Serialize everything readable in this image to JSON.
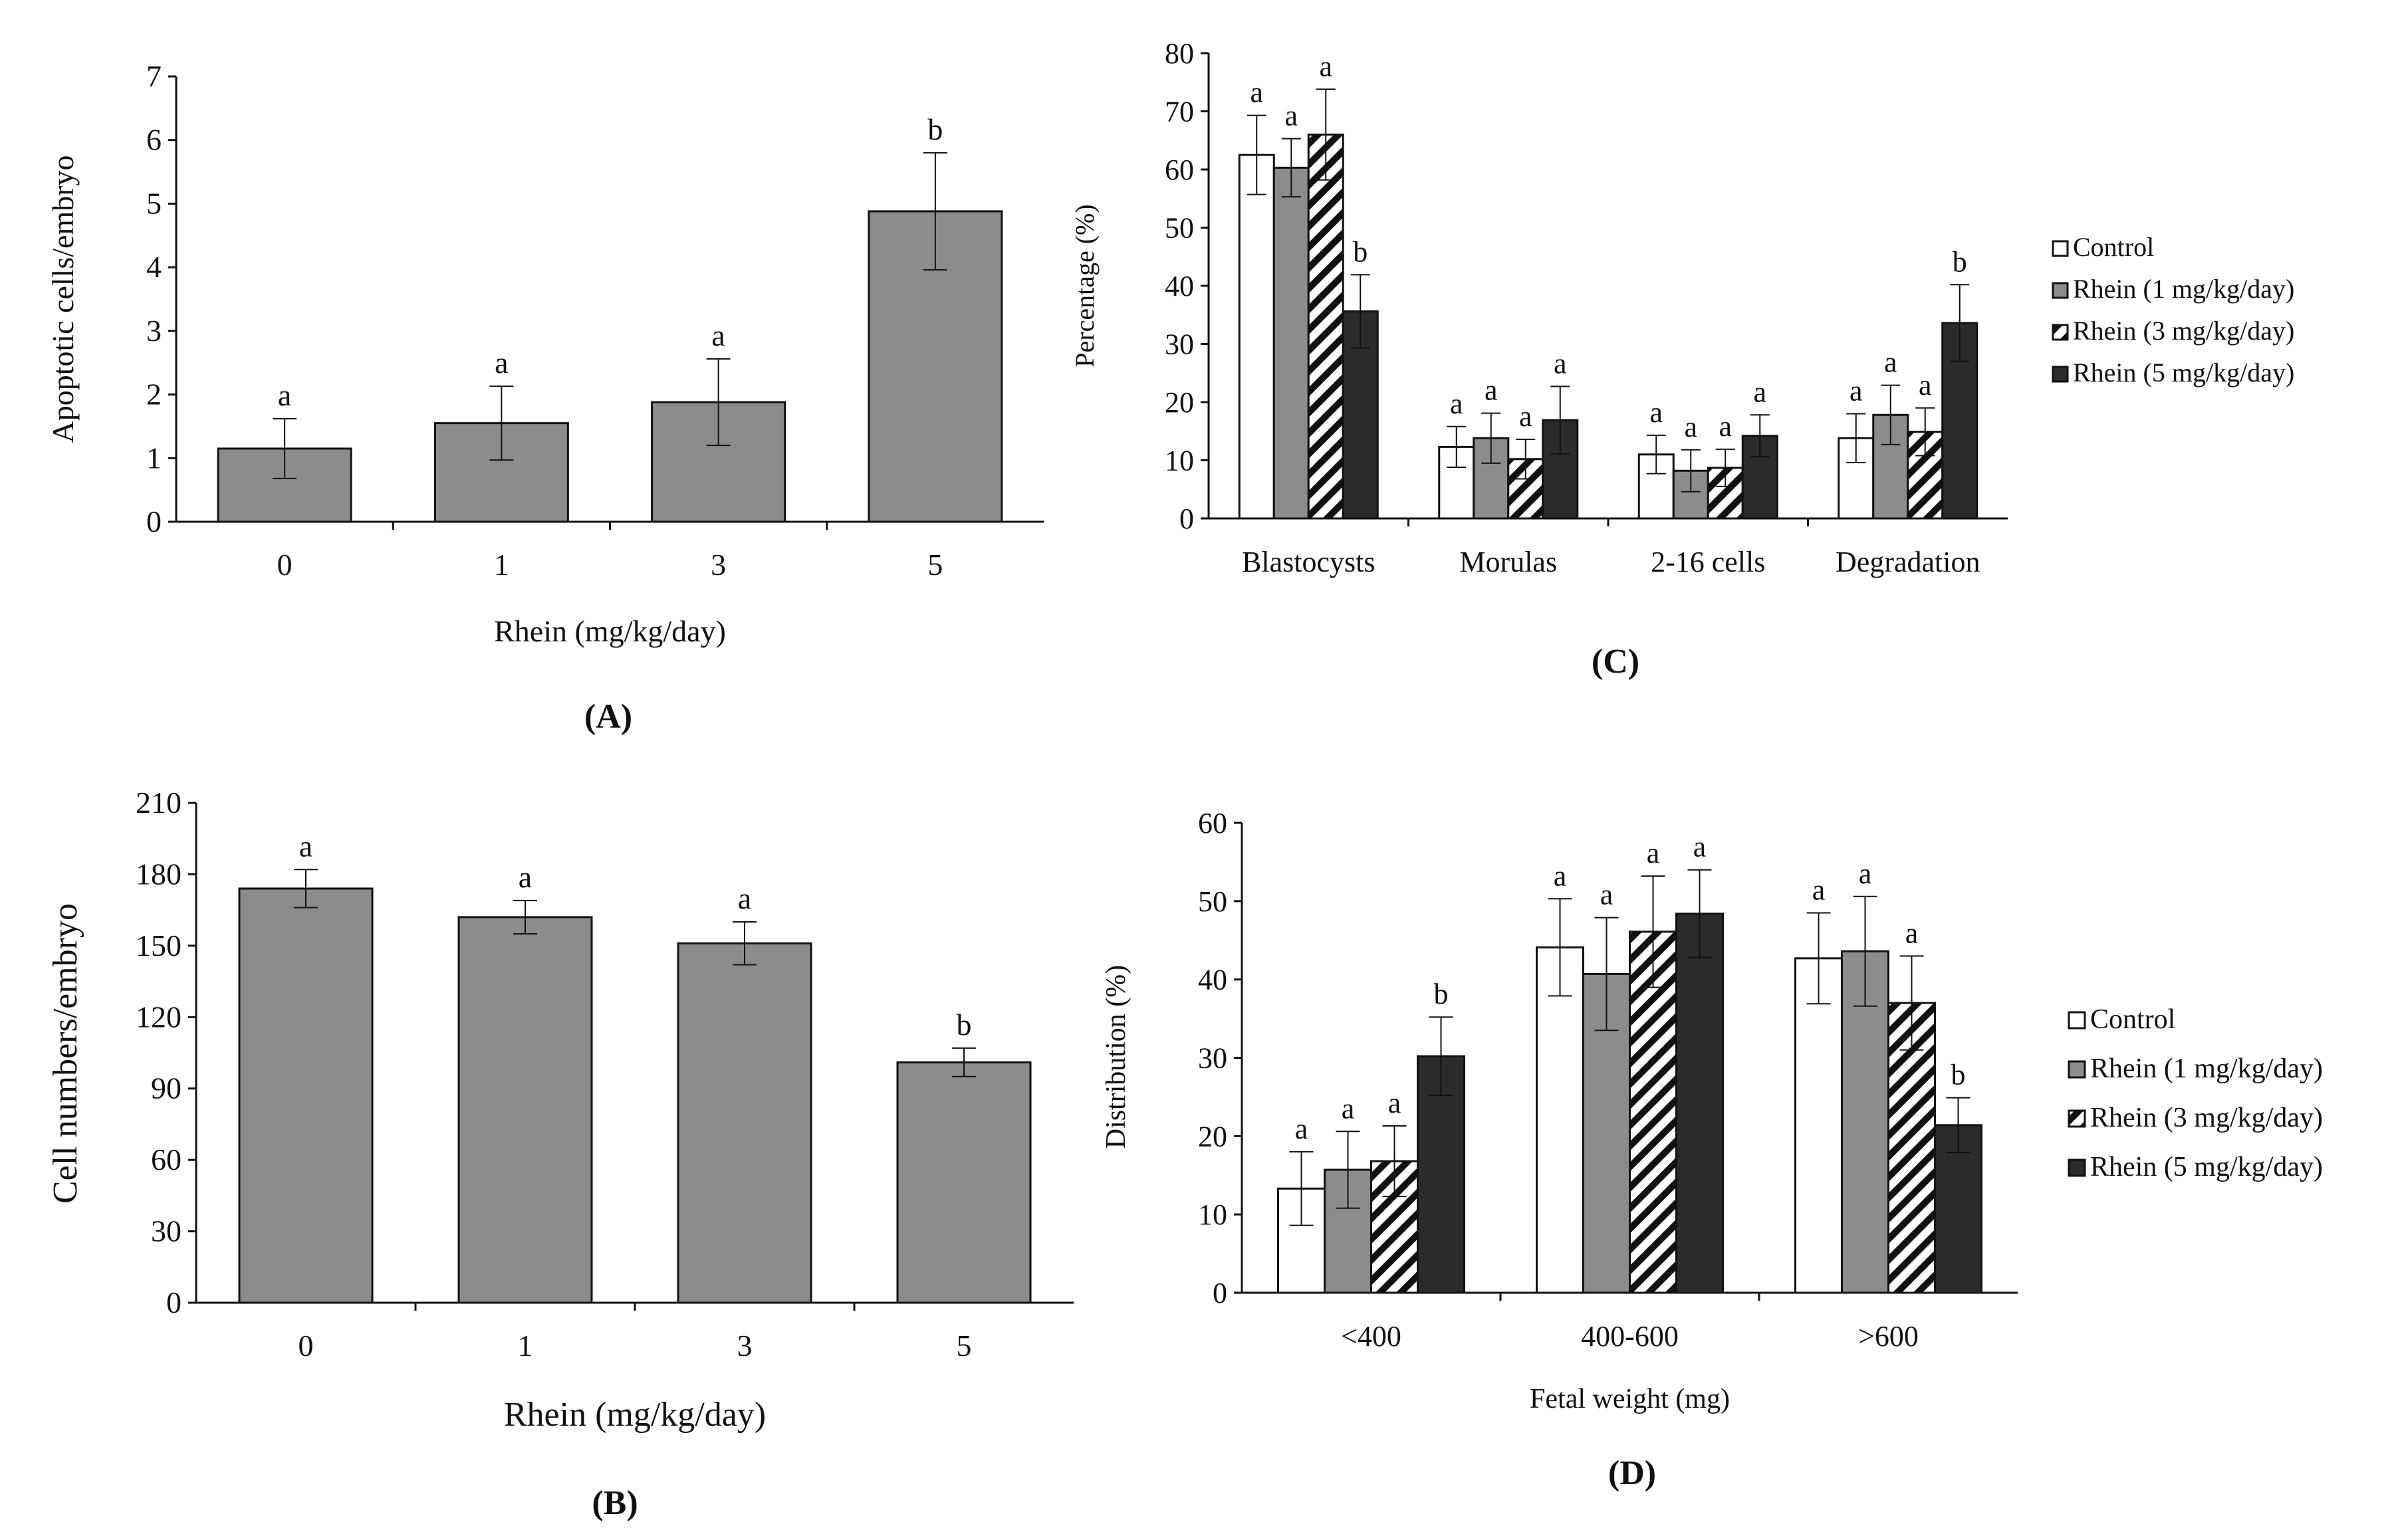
{
  "colors": {
    "axis": "#111111",
    "bar_gray": "#8c8c8c",
    "control_white": "#ffffff",
    "rhein5_dark": "#2b2b2b",
    "stroke": "#111111"
  },
  "chart_data": [
    {
      "id": "A",
      "type": "bar",
      "panel_label": "(A)",
      "xlabel": "Rhein (mg/kg/day)",
      "ylabel": "Apoptotic cells/embryo",
      "ylim": [
        0,
        7
      ],
      "yticks": [
        "0",
        "1",
        "2",
        "3",
        "4",
        "5",
        "6",
        "7"
      ],
      "categories": [
        "0",
        "1",
        "3",
        "5"
      ],
      "values": [
        1.15,
        1.55,
        1.88,
        4.88
      ],
      "errors": [
        0.47,
        0.58,
        0.68,
        0.92
      ],
      "sig_letters": [
        "a",
        "a",
        "a",
        "b"
      ]
    },
    {
      "id": "B",
      "type": "bar",
      "panel_label": "(B)",
      "xlabel": "Rhein (mg/kg/day)",
      "ylabel": "Cell numbers/embryo",
      "ylim": [
        0,
        210
      ],
      "yticks": [
        "0",
        "30",
        "60",
        "90",
        "120",
        "150",
        "180",
        "210"
      ],
      "categories": [
        "0",
        "1",
        "3",
        "5"
      ],
      "values": [
        174,
        162,
        151,
        101
      ],
      "errors": [
        8,
        7,
        9,
        6
      ],
      "sig_letters": [
        "a",
        "a",
        "a",
        "b"
      ]
    },
    {
      "id": "C",
      "type": "bar",
      "panel_label": "(C)",
      "xlabel": "",
      "ylabel": "Percentage (%)",
      "ylim": [
        0,
        80
      ],
      "yticks": [
        "0",
        "10",
        "20",
        "30",
        "40",
        "50",
        "60",
        "70",
        "80"
      ],
      "categories": [
        "Blastocysts",
        "Morulas",
        "2-16 cells",
        "Degradation"
      ],
      "legend": [
        "Control",
        "Rhein  (1 mg/kg/day)",
        "Rhein  (3 mg/kg/day)",
        "Rhein   (5 mg/kg/day)"
      ],
      "series": [
        {
          "name": "Control",
          "values": [
            62.5,
            12.3,
            11.0,
            13.8
          ],
          "errors": [
            6.8,
            3.5,
            3.3,
            4.2
          ],
          "letters": [
            "a",
            "a",
            "a",
            "a"
          ]
        },
        {
          "name": "Rhein (1 mg/kg/day)",
          "values": [
            60.3,
            13.8,
            8.2,
            17.8
          ],
          "errors": [
            5.0,
            4.3,
            3.6,
            5.1
          ],
          "letters": [
            "a",
            "a",
            "a",
            "a"
          ]
        },
        {
          "name": "Rhein (3 mg/kg/day)",
          "values": [
            66.0,
            10.2,
            8.7,
            14.9
          ],
          "errors": [
            7.8,
            3.4,
            3.2,
            4.1
          ],
          "letters": [
            "a",
            "a",
            "a",
            "a"
          ]
        },
        {
          "name": "Rhein (5 mg/kg/day)",
          "values": [
            35.6,
            16.9,
            14.2,
            33.6
          ],
          "errors": [
            6.3,
            5.8,
            3.6,
            6.6
          ],
          "letters": [
            "b",
            "a",
            "a",
            "b"
          ]
        }
      ]
    },
    {
      "id": "D",
      "type": "bar",
      "panel_label": "(D)",
      "xlabel": "Fetal weight (mg)",
      "ylabel": "Distribution (%)",
      "ylim": [
        0,
        60
      ],
      "yticks": [
        "0",
        "10",
        "20",
        "30",
        "40",
        "50",
        "60"
      ],
      "categories": [
        "<400",
        "400-600",
        ">600"
      ],
      "legend": [
        "Control",
        "Rhein (1 mg/kg/day)",
        "Rhein (3 mg/kg/day)",
        "Rhein (5 mg/kg/day)"
      ],
      "series": [
        {
          "name": "Control",
          "values": [
            13.3,
            44.1,
            42.7
          ],
          "errors": [
            4.7,
            6.2,
            5.8
          ],
          "letters": [
            "a",
            "a",
            "a"
          ]
        },
        {
          "name": "Rhein (1 mg/kg/day)",
          "values": [
            15.7,
            40.7,
            43.6
          ],
          "errors": [
            4.9,
            7.2,
            7.0
          ],
          "letters": [
            "a",
            "a",
            "a"
          ]
        },
        {
          "name": "Rhein (3 mg/kg/day)",
          "values": [
            16.8,
            46.1,
            37.0
          ],
          "errors": [
            4.5,
            7.1,
            6.0
          ],
          "letters": [
            "a",
            "a",
            "a"
          ]
        },
        {
          "name": "Rhein (5 mg/kg/day)",
          "values": [
            30.2,
            48.4,
            21.4
          ],
          "errors": [
            5.0,
            5.6,
            3.5
          ],
          "letters": [
            "b",
            "a",
            "b"
          ]
        }
      ]
    }
  ]
}
